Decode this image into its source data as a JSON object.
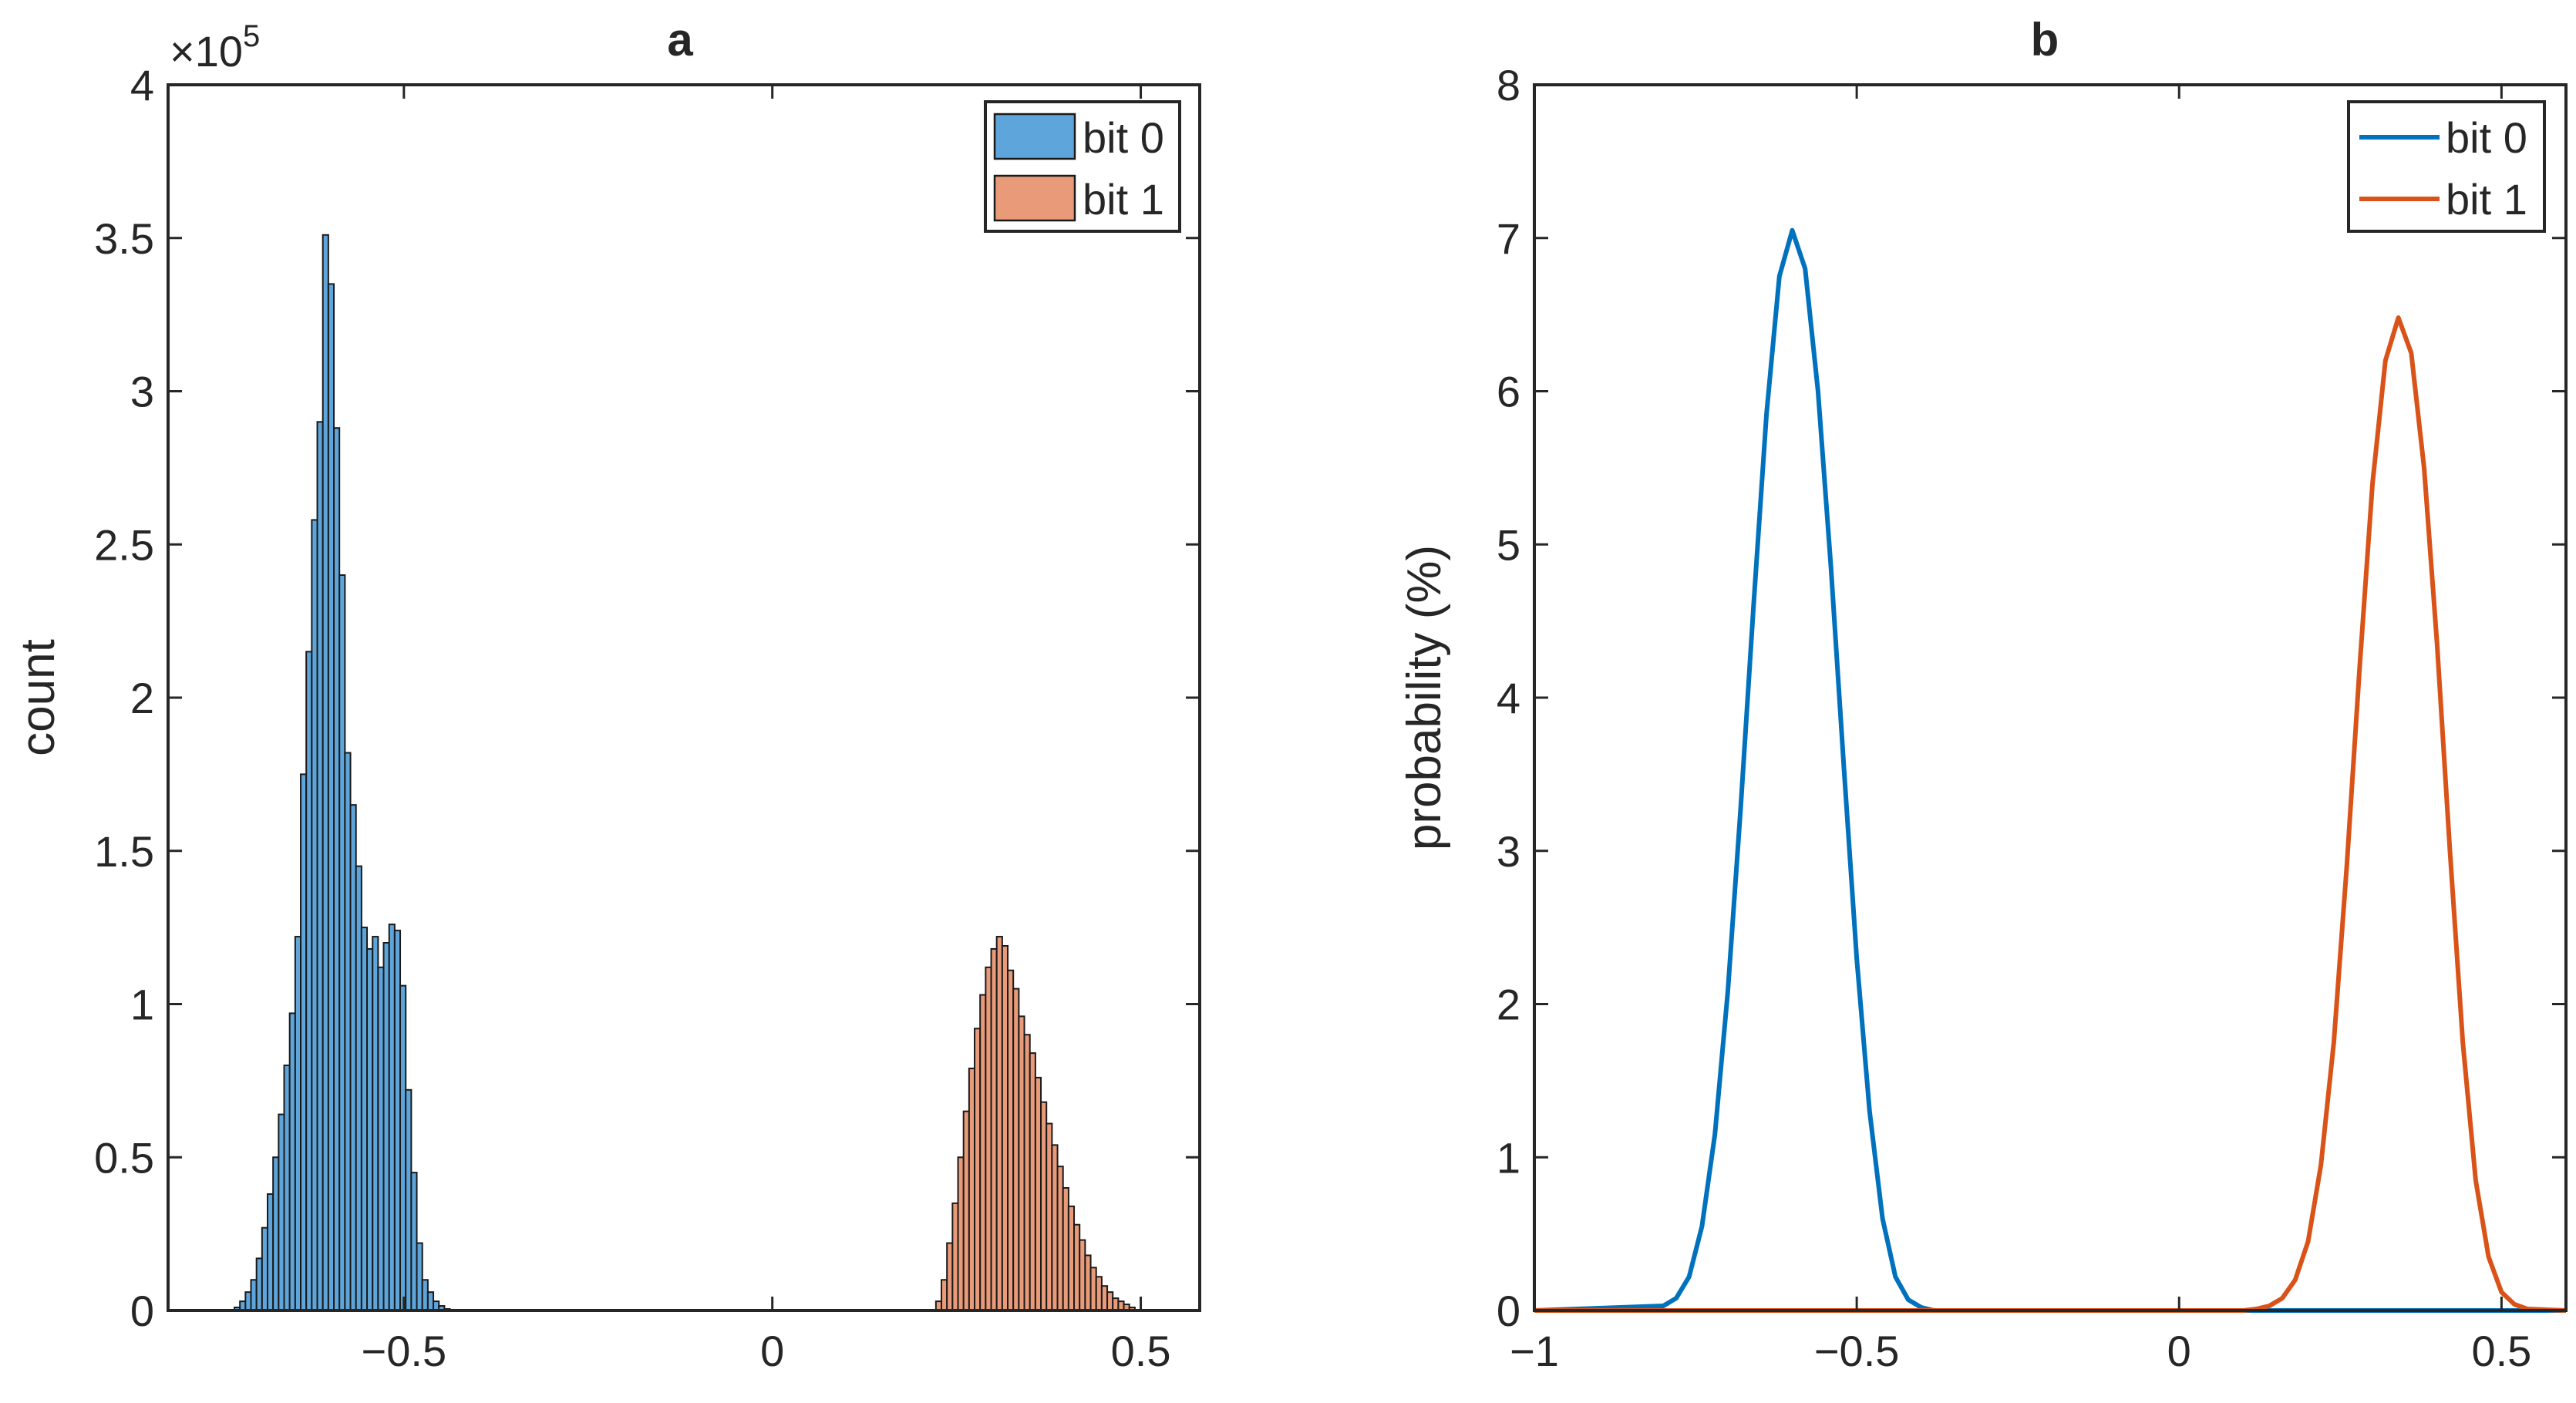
{
  "chart_data": [
    {
      "type": "bar",
      "panel": "a",
      "title": "a",
      "xlabel": "",
      "ylabel": "count",
      "xlim": [
        -0.82,
        0.58
      ],
      "ylim": [
        0,
        400000
      ],
      "y_exponent_label": "×10",
      "y_exponent_power": "5",
      "xticks": [
        -0.5,
        0,
        0.5
      ],
      "xtick_labels": [
        "−0.5",
        "0",
        "0.5"
      ],
      "yticks": [
        0,
        50000,
        100000,
        150000,
        200000,
        250000,
        300000,
        350000,
        400000
      ],
      "ytick_labels": [
        "0",
        "0.5",
        "1",
        "1.5",
        "2",
        "2.5",
        "3",
        "3.5",
        "4"
      ],
      "legend": {
        "position": "top-right",
        "entries": [
          "bit 0",
          "bit 1"
        ]
      },
      "series": [
        {
          "name": "bit 0",
          "color": "#5DA5DA",
          "edge_color": "#1a1a1a",
          "bin_start": -0.73,
          "bin_width": 0.0075,
          "values": [
            1000,
            3000,
            6000,
            10000,
            17000,
            27000,
            38000,
            50000,
            64000,
            80000,
            97000,
            122000,
            175000,
            215000,
            258000,
            290000,
            351000,
            335000,
            288000,
            240000,
            182000,
            165000,
            145000,
            125000,
            118000,
            122000,
            112000,
            120000,
            126000,
            124000,
            106000,
            72000,
            45000,
            22000,
            10000,
            6000,
            3000,
            1500,
            500
          ]
        },
        {
          "name": "bit 1",
          "color": "#E99A78",
          "edge_color": "#1a1a1a",
          "bin_start": 0.222,
          "bin_width": 0.0075,
          "values": [
            3000,
            10000,
            22000,
            35000,
            50000,
            65000,
            79000,
            92000,
            103000,
            112000,
            118000,
            122000,
            119000,
            111000,
            105000,
            96000,
            90000,
            84000,
            76000,
            68000,
            61000,
            54000,
            47000,
            40000,
            34000,
            28000,
            23000,
            18000,
            14000,
            11000,
            8000,
            6000,
            4000,
            3000,
            2000,
            1000
          ]
        }
      ]
    },
    {
      "type": "line",
      "panel": "b",
      "title": "b",
      "xlabel": "",
      "ylabel": "probability (%)",
      "xlim": [
        -1,
        0.6
      ],
      "ylim": [
        0,
        8
      ],
      "xticks": [
        -1,
        -0.5,
        0,
        0.5
      ],
      "xtick_labels": [
        "−1",
        "−0.5",
        "0",
        "0.5"
      ],
      "yticks": [
        0,
        1,
        2,
        3,
        4,
        5,
        6,
        7,
        8
      ],
      "ytick_labels": [
        "0",
        "1",
        "2",
        "3",
        "4",
        "5",
        "6",
        "7",
        "8"
      ],
      "legend": {
        "position": "top-right",
        "entries": [
          "bit 0",
          "bit 1"
        ]
      },
      "series": [
        {
          "name": "bit 0",
          "color": "#0072BD",
          "x_start": -0.8,
          "x_step": 0.02,
          "values": [
            0.03,
            0.08,
            0.22,
            0.55,
            1.15,
            2.08,
            3.28,
            4.6,
            5.85,
            6.75,
            7.05,
            6.8,
            6.0,
            4.85,
            3.55,
            2.3,
            1.3,
            0.6,
            0.22,
            0.07,
            0.02,
            0.0
          ]
        },
        {
          "name": "bit 1",
          "color": "#D95319",
          "x_start": 0.1,
          "x_step": 0.02,
          "values": [
            0.0,
            0.01,
            0.03,
            0.08,
            0.2,
            0.45,
            0.95,
            1.75,
            2.9,
            4.2,
            5.4,
            6.2,
            6.48,
            6.25,
            5.5,
            4.35,
            3.0,
            1.75,
            0.85,
            0.35,
            0.12,
            0.04,
            0.01
          ]
        }
      ]
    }
  ]
}
